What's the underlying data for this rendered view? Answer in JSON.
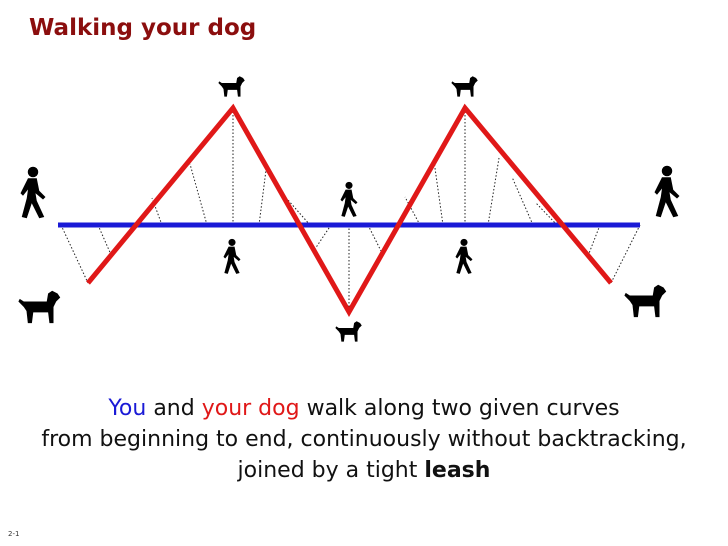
{
  "slide": {
    "title": "Walking your dog",
    "page_number": "2-1"
  },
  "caption": {
    "you": "You",
    "and": " and ",
    "your_dog": "your dog",
    "line1_rest": " walk along two given curves",
    "line2": "from beginning to end, continuously without backtracking,",
    "line3_start": "joined by a tight ",
    "leash": "leash"
  },
  "colors": {
    "title": "#8b0e0e",
    "person_curve": "#1a1ad6",
    "dog_curve": "#e01818",
    "leash": "#222222",
    "icons": "#000000"
  },
  "icons": {
    "person": "person-walking-icon",
    "dog": "dog-icon"
  }
}
